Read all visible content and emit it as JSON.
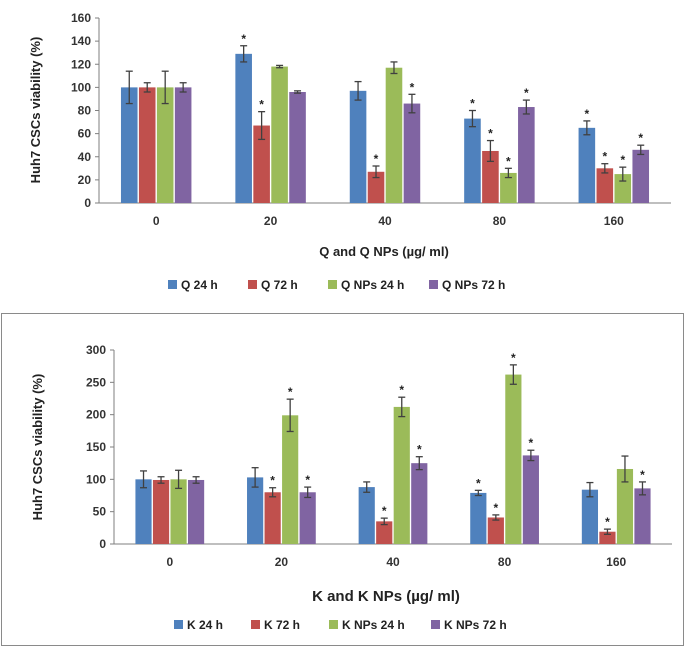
{
  "chart_data": [
    {
      "type": "bar",
      "title": "",
      "ylabel": "Huh7 CSCs viability (%)",
      "xlabel": "Q and Q NPs (µg/ ml)",
      "ylim": [
        0,
        160
      ],
      "yticks": [
        0,
        20,
        40,
        60,
        80,
        100,
        120,
        140,
        160
      ],
      "categories": [
        "0",
        "20",
        "40",
        "80",
        "160"
      ],
      "legend_position": "bottom",
      "grid": false,
      "series": [
        {
          "name": "Q 24 h",
          "color": "#4f81bd",
          "values": [
            100,
            129,
            97,
            73,
            65
          ],
          "errors": [
            14,
            7,
            8,
            7,
            6
          ],
          "significant": [
            false,
            true,
            false,
            true,
            true
          ]
        },
        {
          "name": "Q 72 h",
          "color": "#c0504d",
          "values": [
            100,
            67,
            27,
            45,
            30
          ],
          "errors": [
            4,
            12,
            5,
            9,
            4
          ],
          "significant": [
            false,
            true,
            true,
            true,
            true
          ]
        },
        {
          "name": "Q NPs 24 h",
          "color": "#9bbb59",
          "values": [
            100,
            118,
            117,
            26,
            25
          ],
          "errors": [
            14,
            1,
            5,
            4,
            6
          ],
          "significant": [
            false,
            false,
            false,
            true,
            true
          ]
        },
        {
          "name": "Q NPs 72 h",
          "color": "#8064a2",
          "values": [
            100,
            96,
            86,
            83,
            46
          ],
          "errors": [
            4,
            1,
            8,
            6,
            4
          ],
          "significant": [
            false,
            false,
            true,
            true,
            true
          ]
        }
      ]
    },
    {
      "type": "bar",
      "title": "",
      "ylabel": "Huh7 CSCs viability (%)",
      "xlabel": "K and K NPs (µg/ ml)",
      "ylim": [
        0,
        300
      ],
      "yticks": [
        0,
        50,
        100,
        150,
        200,
        250,
        300
      ],
      "categories": [
        "0",
        "20",
        "40",
        "80",
        "160"
      ],
      "legend_position": "bottom",
      "grid": false,
      "series": [
        {
          "name": "K 24 h",
          "color": "#4f81bd",
          "values": [
            100,
            103,
            88,
            79,
            84
          ],
          "errors": [
            13,
            15,
            8,
            4,
            11
          ],
          "significant": [
            false,
            false,
            false,
            true,
            false
          ]
        },
        {
          "name": "K 72 h",
          "color": "#c0504d",
          "values": [
            99,
            80,
            35,
            41,
            19
          ],
          "errors": [
            5,
            7,
            5,
            4,
            4
          ],
          "significant": [
            false,
            true,
            true,
            true,
            true
          ]
        },
        {
          "name": "K NPs 24 h",
          "color": "#9bbb59",
          "values": [
            100,
            199,
            212,
            262,
            116
          ],
          "errors": [
            14,
            25,
            15,
            15,
            20
          ],
          "significant": [
            false,
            true,
            true,
            true,
            false
          ]
        },
        {
          "name": "K NPs 72 h",
          "color": "#8064a2",
          "values": [
            99,
            80,
            125,
            137,
            86
          ],
          "errors": [
            5,
            8,
            10,
            8,
            10
          ],
          "significant": [
            false,
            true,
            true,
            true,
            true
          ]
        }
      ]
    }
  ],
  "significance_marker": "*"
}
